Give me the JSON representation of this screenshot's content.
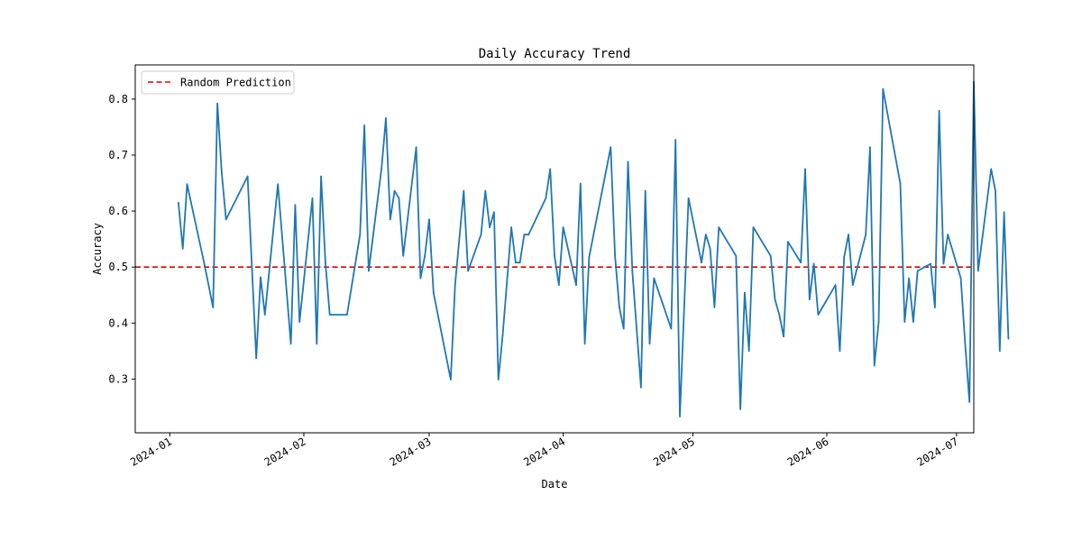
{
  "chart_data": {
    "type": "line",
    "title": "Daily Accuracy Trend",
    "xlabel": "Date",
    "ylabel": "Accuracy",
    "x_axis_type": "date",
    "xlim": [
      "2023-12-24",
      "2024-07-05"
    ],
    "ylim": [
      0.204,
      0.861
    ],
    "x_ticks": [
      "2024-01",
      "2024-02",
      "2024-03",
      "2024-04",
      "2024-05",
      "2024-06",
      "2024-07"
    ],
    "x_tick_dates": [
      "2024-01-01",
      "2024-02-01",
      "2024-03-01",
      "2024-04-01",
      "2024-05-01",
      "2024-06-01",
      "2024-07-01"
    ],
    "y_ticks": [
      0.3,
      0.4,
      0.5,
      0.6,
      0.7,
      0.8
    ],
    "y_tick_labels": [
      "0.3",
      "0.4",
      "0.5",
      "0.6",
      "0.7",
      "0.8"
    ],
    "grid": false,
    "legend": {
      "position": "top-left",
      "entries": [
        "Random Prediction"
      ]
    },
    "reference_line": {
      "name": "Random Prediction",
      "y": 0.5,
      "color": "#e00000",
      "style": "dashed"
    },
    "series": [
      {
        "color": "#1f77b4",
        "points": [
          [
            "2024-01-03",
            0.615
          ],
          [
            "2024-01-04",
            0.533
          ],
          [
            "2024-01-05",
            0.648
          ],
          [
            "2024-01-09",
            0.505
          ],
          [
            "2024-01-11",
            0.428
          ],
          [
            "2024-01-12",
            0.792
          ],
          [
            "2024-01-13",
            0.668
          ],
          [
            "2024-01-14",
            0.585
          ],
          [
            "2024-01-19",
            0.662
          ],
          [
            "2024-01-21",
            0.337
          ],
          [
            "2024-01-22",
            0.482
          ],
          [
            "2024-01-23",
            0.415
          ],
          [
            "2024-01-26",
            0.648
          ],
          [
            "2024-01-29",
            0.363
          ],
          [
            "2024-01-30",
            0.611
          ],
          [
            "2024-01-31",
            0.402
          ],
          [
            "2024-02-03",
            0.623
          ],
          [
            "2024-02-04",
            0.363
          ],
          [
            "2024-02-05",
            0.662
          ],
          [
            "2024-02-06",
            0.508
          ],
          [
            "2024-02-07",
            0.415
          ],
          [
            "2024-02-11",
            0.415
          ],
          [
            "2024-02-14",
            0.558
          ],
          [
            "2024-02-15",
            0.753
          ],
          [
            "2024-02-16",
            0.493
          ],
          [
            "2024-02-19",
            0.677
          ],
          [
            "2024-02-20",
            0.766
          ],
          [
            "2024-02-21",
            0.585
          ],
          [
            "2024-02-22",
            0.636
          ],
          [
            "2024-02-23",
            0.623
          ],
          [
            "2024-02-24",
            0.52
          ],
          [
            "2024-02-27",
            0.714
          ],
          [
            "2024-02-28",
            0.48
          ],
          [
            "2024-02-29",
            0.52
          ],
          [
            "2024-03-01",
            0.585
          ],
          [
            "2024-03-02",
            0.454
          ],
          [
            "2024-03-06",
            0.299
          ],
          [
            "2024-03-07",
            0.468
          ],
          [
            "2024-03-09",
            0.636
          ],
          [
            "2024-03-10",
            0.493
          ],
          [
            "2024-03-13",
            0.558
          ],
          [
            "2024-03-14",
            0.636
          ],
          [
            "2024-03-15",
            0.571
          ],
          [
            "2024-03-16",
            0.598
          ],
          [
            "2024-03-17",
            0.299
          ],
          [
            "2024-03-18",
            0.378
          ],
          [
            "2024-03-20",
            0.571
          ],
          [
            "2024-03-21",
            0.508
          ],
          [
            "2024-03-22",
            0.508
          ],
          [
            "2024-03-23",
            0.558
          ],
          [
            "2024-03-24",
            0.558
          ],
          [
            "2024-03-28",
            0.623
          ],
          [
            "2024-03-29",
            0.675
          ],
          [
            "2024-03-30",
            0.52
          ],
          [
            "2024-03-31",
            0.468
          ],
          [
            "2024-04-01",
            0.571
          ],
          [
            "2024-04-04",
            0.468
          ],
          [
            "2024-04-05",
            0.649
          ],
          [
            "2024-04-06",
            0.363
          ],
          [
            "2024-04-07",
            0.518
          ],
          [
            "2024-04-12",
            0.714
          ],
          [
            "2024-04-13",
            0.52
          ],
          [
            "2024-04-14",
            0.428
          ],
          [
            "2024-04-15",
            0.39
          ],
          [
            "2024-04-16",
            0.688
          ],
          [
            "2024-04-17",
            0.493
          ],
          [
            "2024-04-19",
            0.285
          ],
          [
            "2024-04-20",
            0.636
          ],
          [
            "2024-04-21",
            0.363
          ],
          [
            "2024-04-22",
            0.48
          ],
          [
            "2024-04-26",
            0.39
          ],
          [
            "2024-04-27",
            0.727
          ],
          [
            "2024-04-28",
            0.233
          ],
          [
            "2024-04-30",
            0.623
          ],
          [
            "2024-05-03",
            0.508
          ],
          [
            "2024-05-04",
            0.558
          ],
          [
            "2024-05-05",
            0.533
          ],
          [
            "2024-05-06",
            0.428
          ],
          [
            "2024-05-07",
            0.571
          ],
          [
            "2024-05-11",
            0.52
          ],
          [
            "2024-05-12",
            0.246
          ],
          [
            "2024-05-13",
            0.454
          ],
          [
            "2024-05-14",
            0.35
          ],
          [
            "2024-05-15",
            0.571
          ],
          [
            "2024-05-19",
            0.52
          ],
          [
            "2024-05-20",
            0.442
          ],
          [
            "2024-05-21",
            0.415
          ],
          [
            "2024-05-22",
            0.376
          ],
          [
            "2024-05-23",
            0.545
          ],
          [
            "2024-05-26",
            0.508
          ],
          [
            "2024-05-27",
            0.675
          ],
          [
            "2024-05-28",
            0.442
          ],
          [
            "2024-05-29",
            0.506
          ],
          [
            "2024-05-30",
            0.415
          ],
          [
            "2024-06-03",
            0.468
          ],
          [
            "2024-06-04",
            0.35
          ],
          [
            "2024-06-05",
            0.518
          ],
          [
            "2024-06-06",
            0.558
          ],
          [
            "2024-06-07",
            0.468
          ],
          [
            "2024-06-10",
            0.558
          ],
          [
            "2024-06-11",
            0.714
          ],
          [
            "2024-06-12",
            0.324
          ],
          [
            "2024-06-13",
            0.402
          ],
          [
            "2024-06-14",
            0.818
          ],
          [
            "2024-06-18",
            0.649
          ],
          [
            "2024-06-19",
            0.402
          ],
          [
            "2024-06-20",
            0.48
          ],
          [
            "2024-06-21",
            0.402
          ],
          [
            "2024-06-22",
            0.493
          ],
          [
            "2024-06-25",
            0.506
          ],
          [
            "2024-06-26",
            0.428
          ],
          [
            "2024-06-27",
            0.779
          ],
          [
            "2024-06-28",
            0.506
          ],
          [
            "2024-06-29",
            0.558
          ],
          [
            "2024-07-02",
            0.48
          ],
          [
            "2024-07-03",
            0.363
          ],
          [
            "2024-07-04",
            0.259
          ],
          [
            "2024-07-05",
            0.831
          ],
          [
            "2024-07-06",
            0.493
          ],
          [
            "2024-07-09",
            0.675
          ],
          [
            "2024-07-10",
            0.636
          ],
          [
            "2024-07-11",
            0.35
          ],
          [
            "2024-07-12",
            0.598
          ],
          [
            "2024-07-13",
            0.372
          ]
        ]
      }
    ]
  }
}
